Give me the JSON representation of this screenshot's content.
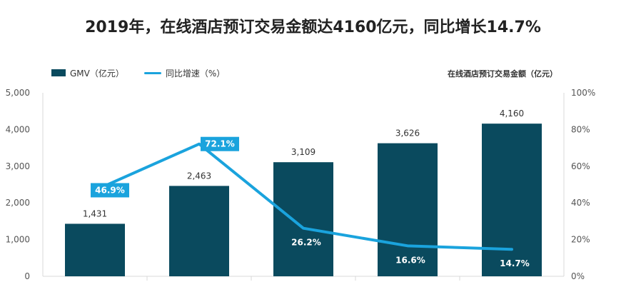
{
  "title": "2019年，在线酒店预订交易金额达4160亿元，同比增长14.7%",
  "legend": {
    "bar": "GMV（亿元）",
    "line": "同比增速（%）"
  },
  "note": "在线酒店预订交易金额（亿元）",
  "colors": {
    "bar": "#0a4a5e",
    "line": "#1aa3dd",
    "label_box": "#1aa3dd"
  },
  "chart_data": {
    "type": "bar+line",
    "title": "2019年，在线酒店预订交易金额达4160亿元，同比增长14.7%",
    "categories": [
      "",
      "",
      "",
      "",
      ""
    ],
    "series": [
      {
        "name": "GMV（亿元）",
        "type": "bar",
        "axis": "left",
        "values": [
          1431,
          2463,
          3109,
          3626,
          4160
        ],
        "labels": [
          "1,431",
          "2,463",
          "3,109",
          "3,626",
          "4,160"
        ]
      },
      {
        "name": "同比增速（%）",
        "type": "line",
        "axis": "right",
        "values": [
          46.9,
          72.1,
          26.2,
          16.6,
          14.7
        ],
        "labels": [
          "46.9%",
          "72.1%",
          "26.2%",
          "16.6%",
          "14.7%"
        ]
      }
    ],
    "y_left": {
      "ylim": [
        0,
        5000
      ],
      "ticks": [
        "0",
        "1,000",
        "2,000",
        "3,000",
        "4,000",
        "5,000"
      ]
    },
    "y_right": {
      "ylim": [
        0,
        100
      ],
      "ticks": [
        "0%",
        "20%",
        "40%",
        "60%",
        "80%",
        "100%"
      ]
    },
    "grid": false
  }
}
